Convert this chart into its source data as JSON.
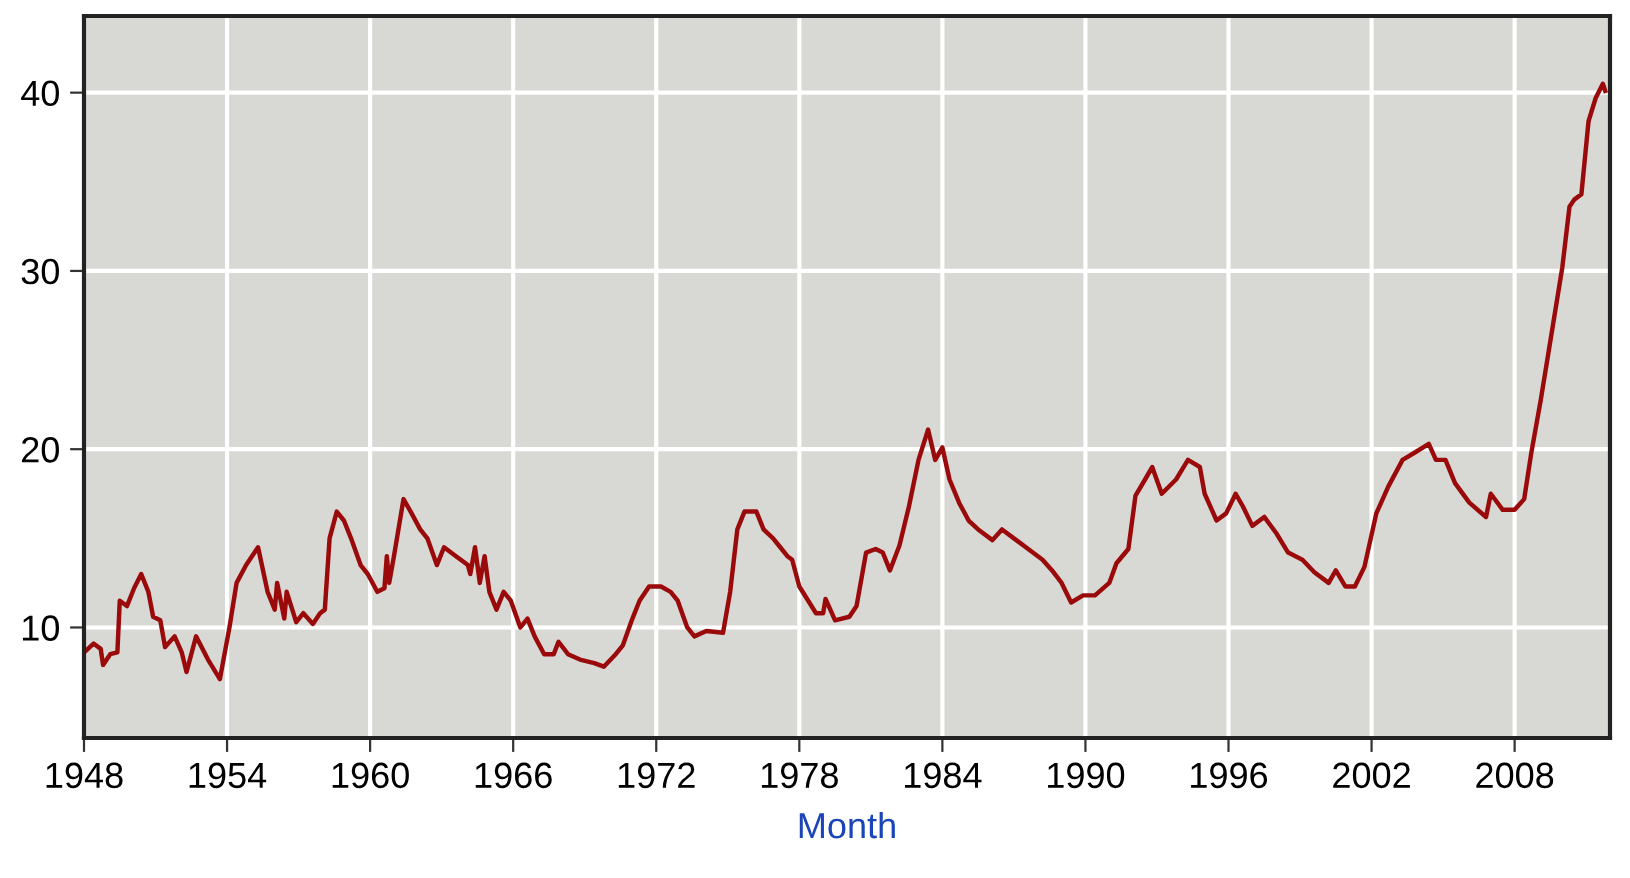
{
  "chart_data": {
    "type": "line",
    "xlabel": "Month",
    "x": [
      1948.0,
      1948.4,
      1948.7,
      1948.8,
      1949.1,
      1949.4,
      1949.5,
      1949.8,
      1950.1,
      1950.4,
      1950.7,
      1950.9,
      1951.2,
      1951.4,
      1951.8,
      1952.1,
      1952.3,
      1952.7,
      1953.2,
      1953.7,
      1954.1,
      1954.4,
      1954.8,
      1955.3,
      1955.7,
      1956.0,
      1956.1,
      1956.4,
      1956.5,
      1956.9,
      1957.2,
      1957.6,
      1957.9,
      1958.1,
      1958.3,
      1958.6,
      1958.9,
      1959.2,
      1959.6,
      1959.9,
      1960.3,
      1960.6,
      1960.7,
      1960.8,
      1961.0,
      1961.4,
      1961.7,
      1962.1,
      1962.4,
      1962.8,
      1963.1,
      1963.6,
      1964.1,
      1964.2,
      1964.4,
      1964.6,
      1964.8,
      1965.0,
      1965.3,
      1965.6,
      1965.9,
      1966.3,
      1966.6,
      1966.9,
      1967.3,
      1967.7,
      1967.9,
      1968.3,
      1968.8,
      1969.4,
      1969.8,
      1970.3,
      1970.6,
      1971.0,
      1971.3,
      1971.7,
      1972.2,
      1972.6,
      1972.9,
      1973.3,
      1973.6,
      1974.1,
      1974.8,
      1975.1,
      1975.4,
      1975.7,
      1976.2,
      1976.5,
      1976.9,
      1977.2,
      1977.5,
      1977.7,
      1978.0,
      1978.7,
      1979.0,
      1979.1,
      1979.5,
      1980.1,
      1980.4,
      1980.8,
      1981.2,
      1981.5,
      1981.8,
      1982.2,
      1982.6,
      1983.0,
      1983.4,
      1983.7,
      1984.0,
      1984.3,
      1984.7,
      1985.1,
      1985.5,
      1986.1,
      1986.5,
      1987.1,
      1987.6,
      1988.2,
      1988.6,
      1989.0,
      1989.4,
      1989.9,
      1990.4,
      1991.0,
      1991.3,
      1991.8,
      1992.1,
      1992.5,
      1992.8,
      1993.2,
      1993.8,
      1994.3,
      1994.8,
      1995.0,
      1995.5,
      1995.9,
      1996.3,
      1996.6,
      1997.0,
      1997.5,
      1998.0,
      1998.5,
      1999.1,
      1999.6,
      2000.2,
      2000.5,
      2000.9,
      2001.3,
      2001.7,
      2002.2,
      2002.7,
      2003.3,
      2003.8,
      2004.4,
      2004.7,
      2005.1,
      2005.5,
      2006.1,
      2006.8,
      2007.0,
      2007.5,
      2008.0,
      2008.4,
      2008.7,
      2009.1,
      2009.6,
      2010.0,
      2010.3,
      2010.5,
      2010.8,
      2011.1,
      2011.4,
      2011.7,
      2011.8
    ],
    "series": [
      {
        "color": "#9b0a0a",
        "values": [
          8.6,
          9.1,
          8.8,
          7.9,
          8.5,
          8.6,
          11.5,
          11.2,
          12.2,
          13.0,
          12.0,
          10.6,
          10.4,
          8.9,
          9.5,
          8.6,
          7.5,
          9.5,
          8.2,
          7.1,
          10.0,
          12.5,
          13.5,
          14.5,
          12.0,
          11.0,
          12.5,
          10.5,
          12.0,
          10.3,
          10.8,
          10.2,
          10.8,
          11.0,
          15.0,
          16.5,
          16.0,
          15.0,
          13.5,
          13.0,
          12.0,
          12.2,
          14.0,
          12.5,
          14.0,
          17.2,
          16.5,
          15.5,
          15.0,
          13.5,
          14.5,
          14.0,
          13.5,
          13.0,
          14.5,
          12.5,
          14.0,
          12.0,
          11.0,
          12.0,
          11.5,
          10.0,
          10.5,
          9.5,
          8.5,
          8.5,
          9.2,
          8.5,
          8.2,
          8.0,
          7.8,
          8.5,
          9.0,
          10.5,
          11.5,
          12.3,
          12.3,
          12.0,
          11.5,
          10.0,
          9.5,
          9.8,
          9.7,
          12.0,
          15.5,
          16.5,
          16.5,
          15.5,
          15.0,
          14.5,
          14.0,
          13.8,
          12.3,
          10.8,
          10.8,
          11.6,
          10.4,
          10.6,
          11.2,
          14.2,
          14.4,
          14.2,
          13.2,
          14.6,
          16.8,
          19.4,
          21.1,
          19.4,
          20.1,
          18.3,
          17.0,
          16.0,
          15.5,
          14.9,
          15.5,
          14.9,
          14.4,
          13.8,
          13.2,
          12.5,
          11.4,
          11.8,
          11.8,
          12.5,
          13.6,
          14.4,
          17.4,
          18.3,
          19.0,
          17.5,
          18.3,
          19.4,
          19.0,
          17.5,
          16.0,
          16.4,
          17.5,
          16.8,
          15.7,
          16.2,
          15.3,
          14.2,
          13.8,
          13.1,
          12.5,
          13.2,
          12.3,
          12.3,
          13.4,
          16.4,
          17.9,
          19.4,
          19.8,
          20.3,
          19.4,
          19.4,
          18.1,
          17.0,
          16.2,
          17.5,
          16.6,
          16.6,
          17.2,
          19.8,
          22.8,
          26.9,
          30.2,
          33.6,
          34.0,
          34.3,
          38.4,
          39.7,
          40.5,
          40.1
        ]
      }
    ],
    "xlim": [
      1948.0,
      2012.0
    ],
    "xticks": [
      1948,
      1954,
      1960,
      1966,
      1972,
      1978,
      1984,
      1990,
      1996,
      2002,
      2008
    ],
    "ylim": [
      3.8,
      44.3
    ],
    "yticks": [
      10,
      20,
      30,
      40
    ],
    "grid": true,
    "marker": "none",
    "line_style": "solid"
  }
}
